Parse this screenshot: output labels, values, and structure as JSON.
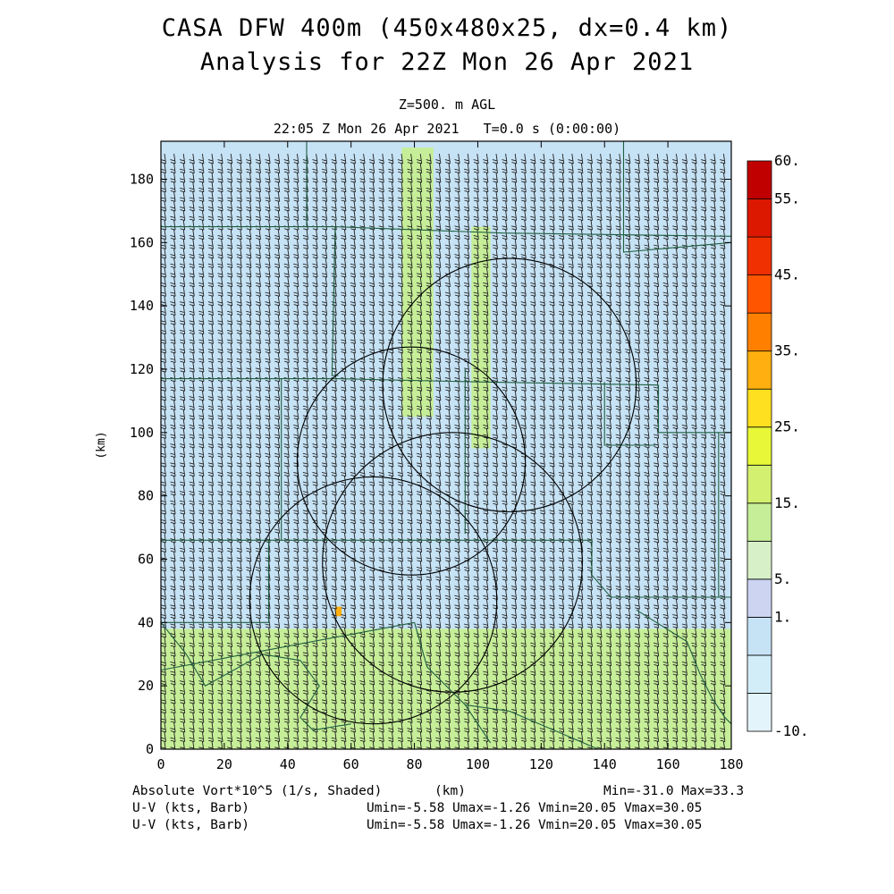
{
  "header": {
    "title_line1": "CASA DFW 400m (450x480x25, dx=0.4 km)",
    "title_line2": "Analysis for 22Z Mon 26 Apr 2021",
    "level": "Z=500. m AGL",
    "valid_time": "22:05 Z Mon 26 Apr 2021   T=0.0 s (0:00:00)"
  },
  "footer": {
    "field_label": "Absolute Vort*10^5 (1/s, Shaded)",
    "xunit": "(km)",
    "minmax": "Min=-31.0 Max=33.3",
    "barb1_label": "U-V (kts, Barb)",
    "barb1_stats": "Umin=-5.58 Umax=-1.26 Vmin=20.05 Vmax=30.05",
    "barb2_label": "U-V (kts, Barb)",
    "barb2_stats": "Umin=-5.58 Umax=-1.26 Vmin=20.05 Vmax=30.05"
  },
  "chart_data": {
    "type": "heatmap",
    "xlabel": "",
    "ylabel": "(km)",
    "xlim": [
      0,
      180
    ],
    "ylim": [
      0,
      192
    ],
    "xticks": [
      0,
      20,
      40,
      60,
      80,
      100,
      120,
      140,
      160,
      180
    ],
    "yticks": [
      0,
      20,
      40,
      60,
      80,
      100,
      120,
      140,
      160,
      180
    ],
    "colorbar": {
      "levels": [
        -10,
        -5,
        0,
        1,
        5,
        10,
        15,
        20,
        25,
        30,
        35,
        40,
        45,
        50,
        55,
        60
      ],
      "labels": [
        "-10.",
        "1.",
        "5.",
        "15.",
        "25.",
        "35.",
        "45.",
        "55.",
        "60."
      ],
      "colors": [
        "#e4f4fb",
        "#d2ecf8",
        "#c6e2f5",
        "#ccd4f2",
        "#d8f0c8",
        "#c6ee98",
        "#d4f070",
        "#e8f838",
        "#ffe020",
        "#ffb010",
        "#ff8000",
        "#ff5500",
        "#f03000",
        "#dd1800",
        "#c00000"
      ]
    },
    "vorticity_regions": [
      {
        "name": "background",
        "value": 0
      },
      {
        "name": "southern-band",
        "x": [
          0,
          180
        ],
        "y": [
          0,
          38
        ],
        "value": 10
      },
      {
        "name": "north-streak",
        "x": [
          76,
          86
        ],
        "y": [
          105,
          190
        ],
        "value": 12
      },
      {
        "name": "central-streak",
        "x": [
          98,
          104
        ],
        "y": [
          95,
          165
        ],
        "value": 10
      },
      {
        "name": "max-spot",
        "x": [
          55,
          57
        ],
        "y": [
          42,
          45
        ],
        "value": 33.3
      }
    ],
    "wind_barbs": {
      "u_range_kts": [
        -5.58,
        -1.26
      ],
      "v_range_kts": [
        20.05,
        30.05
      ]
    },
    "radar_rings": [
      {
        "center": [
          67,
          47
        ],
        "radius": 39
      },
      {
        "center": [
          79,
          91
        ],
        "radius": 36
      },
      {
        "center": [
          110,
          115
        ],
        "radius": 40
      },
      {
        "center": [
          92,
          59
        ],
        "radius": 41
      }
    ]
  }
}
